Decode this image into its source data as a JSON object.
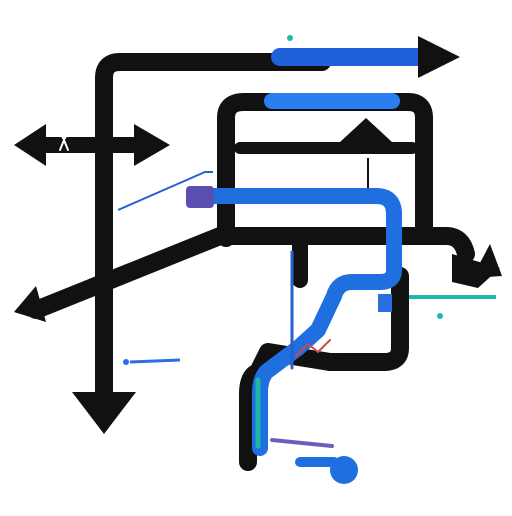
{
  "labels": {
    "top_title": "",
    "top_subtitle": "",
    "middle": "",
    "left": "",
    "right": "",
    "bottom": ""
  },
  "icons": [
    "arrow-right-icon",
    "arrow-left-icon",
    "arrow-down-icon",
    "pedestrian-icon"
  ],
  "colors": {
    "route": "#111111",
    "accent_blue": "#1f6fe0",
    "accent_teal": "#1fb8a8",
    "accent_purple": "#5a4fb0",
    "accent_red": "#d0494a"
  }
}
